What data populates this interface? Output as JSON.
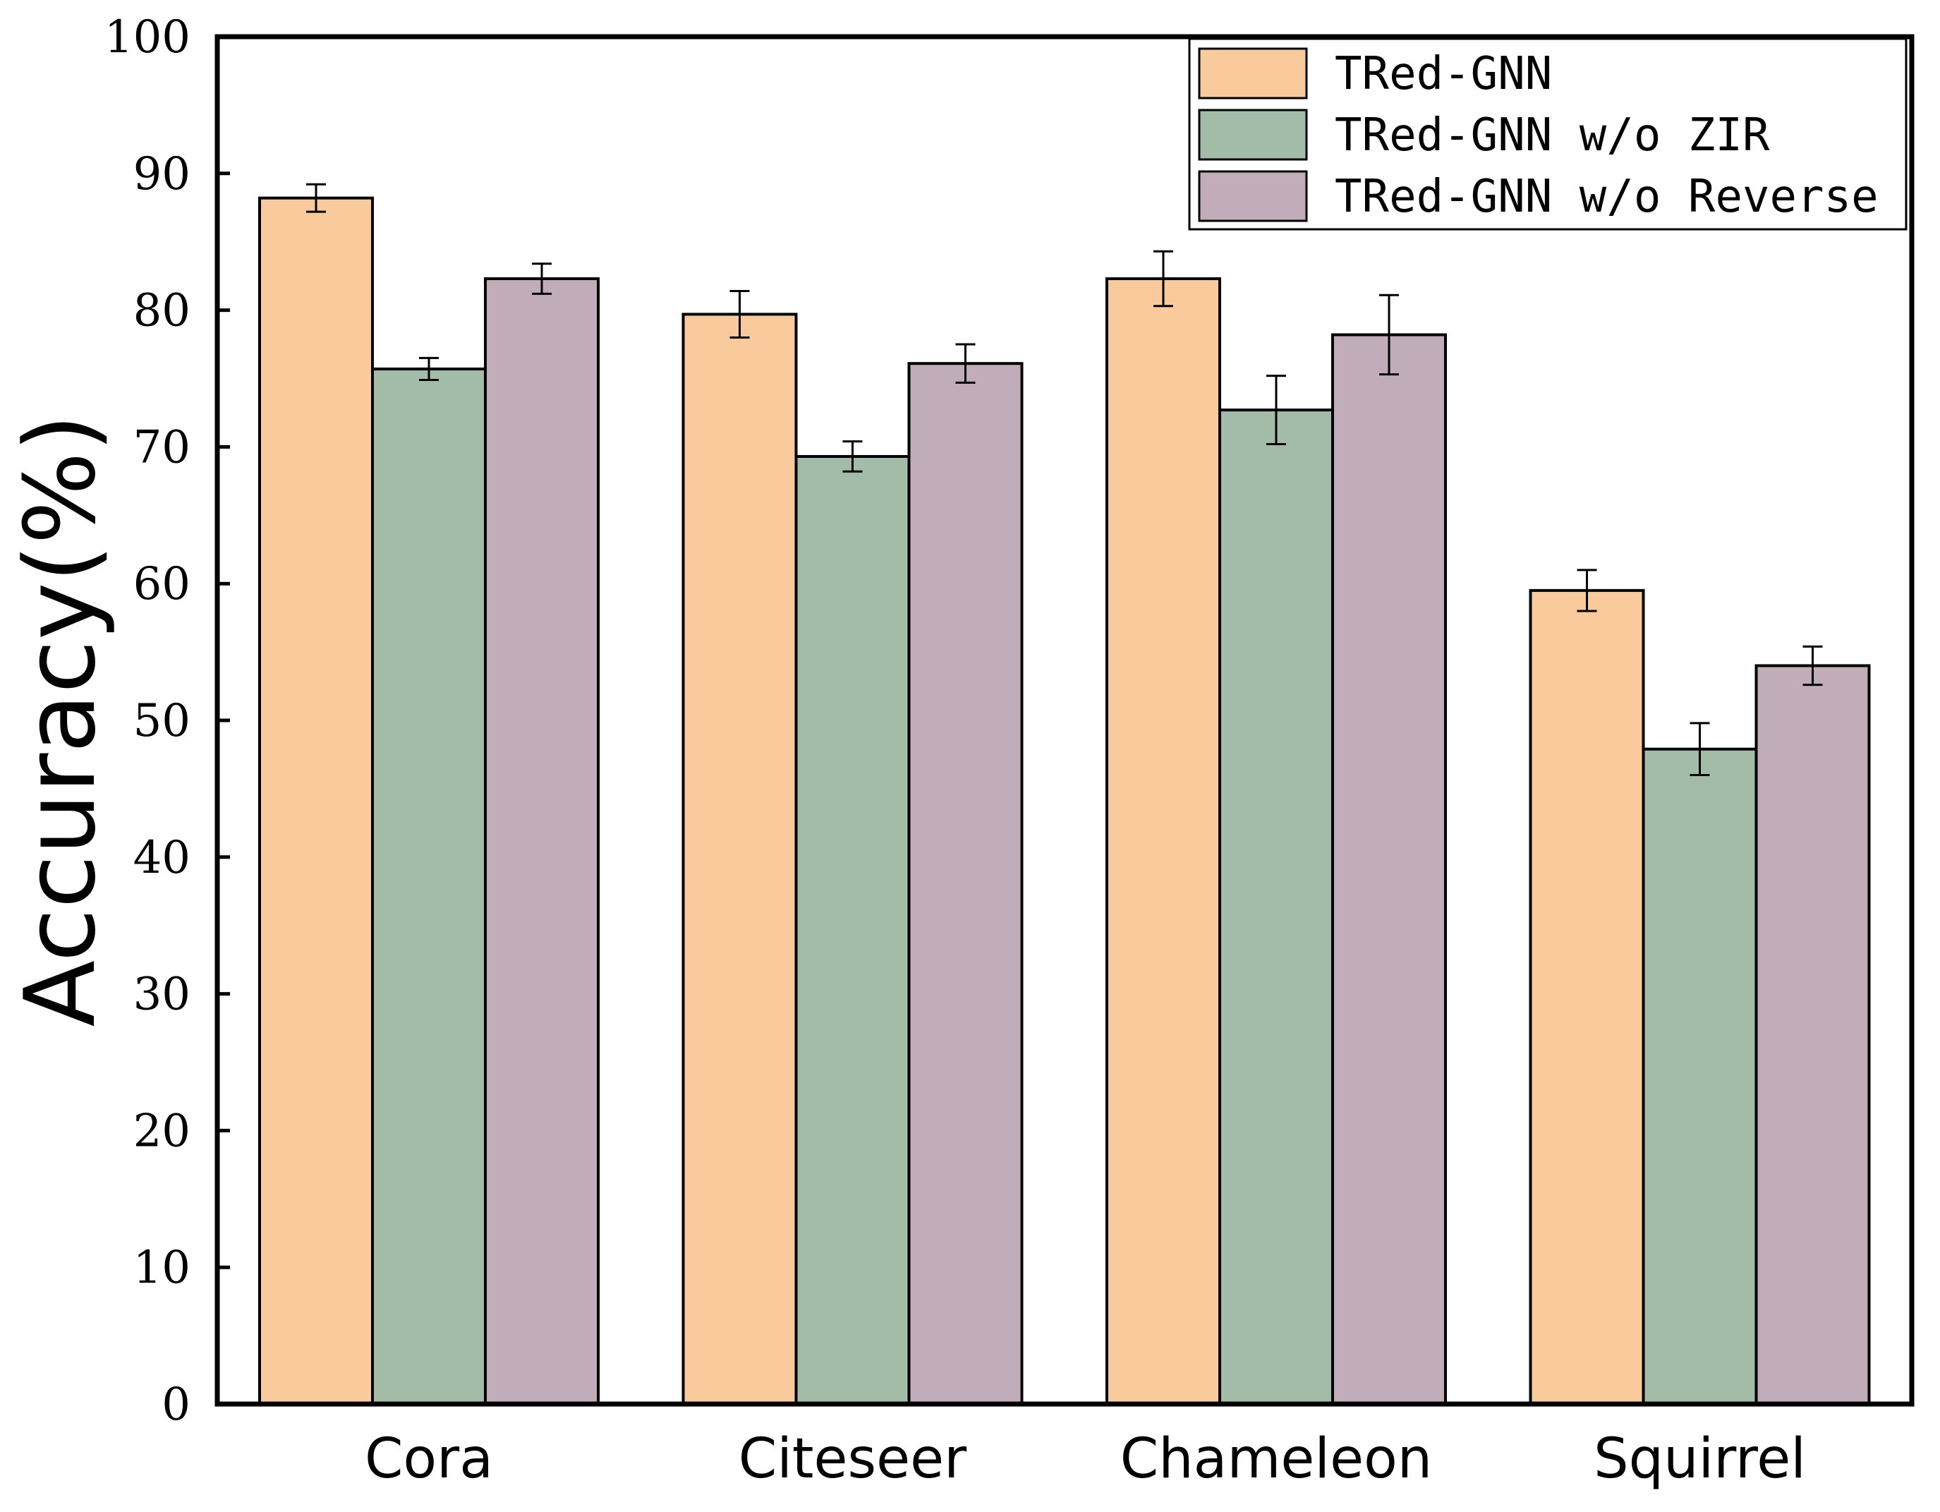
{
  "chart_data": {
    "type": "bar",
    "title": "",
    "xlabel": "",
    "ylabel": "Accuracy(%)",
    "ylim": [
      0,
      100
    ],
    "yticks": [
      0,
      10,
      20,
      30,
      40,
      50,
      60,
      70,
      80,
      90,
      100
    ],
    "grid": false,
    "legend_position": "top-right",
    "categories": [
      "Cora",
      "Citeseer",
      "Chameleon",
      "Squirrel"
    ],
    "series": [
      {
        "name": "TRed-GNN",
        "color": "#f9cb9c",
        "values": [
          88.2,
          79.7,
          82.3,
          59.5
        ],
        "errors": [
          1.0,
          1.7,
          2.0,
          1.5
        ]
      },
      {
        "name": "TRed-GNN w/o ZIR",
        "color": "#a3bca7",
        "values": [
          75.7,
          69.3,
          72.7,
          47.9
        ],
        "errors": [
          0.8,
          1.1,
          2.5,
          1.9
        ]
      },
      {
        "name": "TRed-GNN w/o Reverse",
        "color": "#c0adb9",
        "values": [
          82.3,
          76.1,
          78.2,
          54.0
        ],
        "errors": [
          1.1,
          1.4,
          2.9,
          1.4
        ]
      }
    ]
  }
}
